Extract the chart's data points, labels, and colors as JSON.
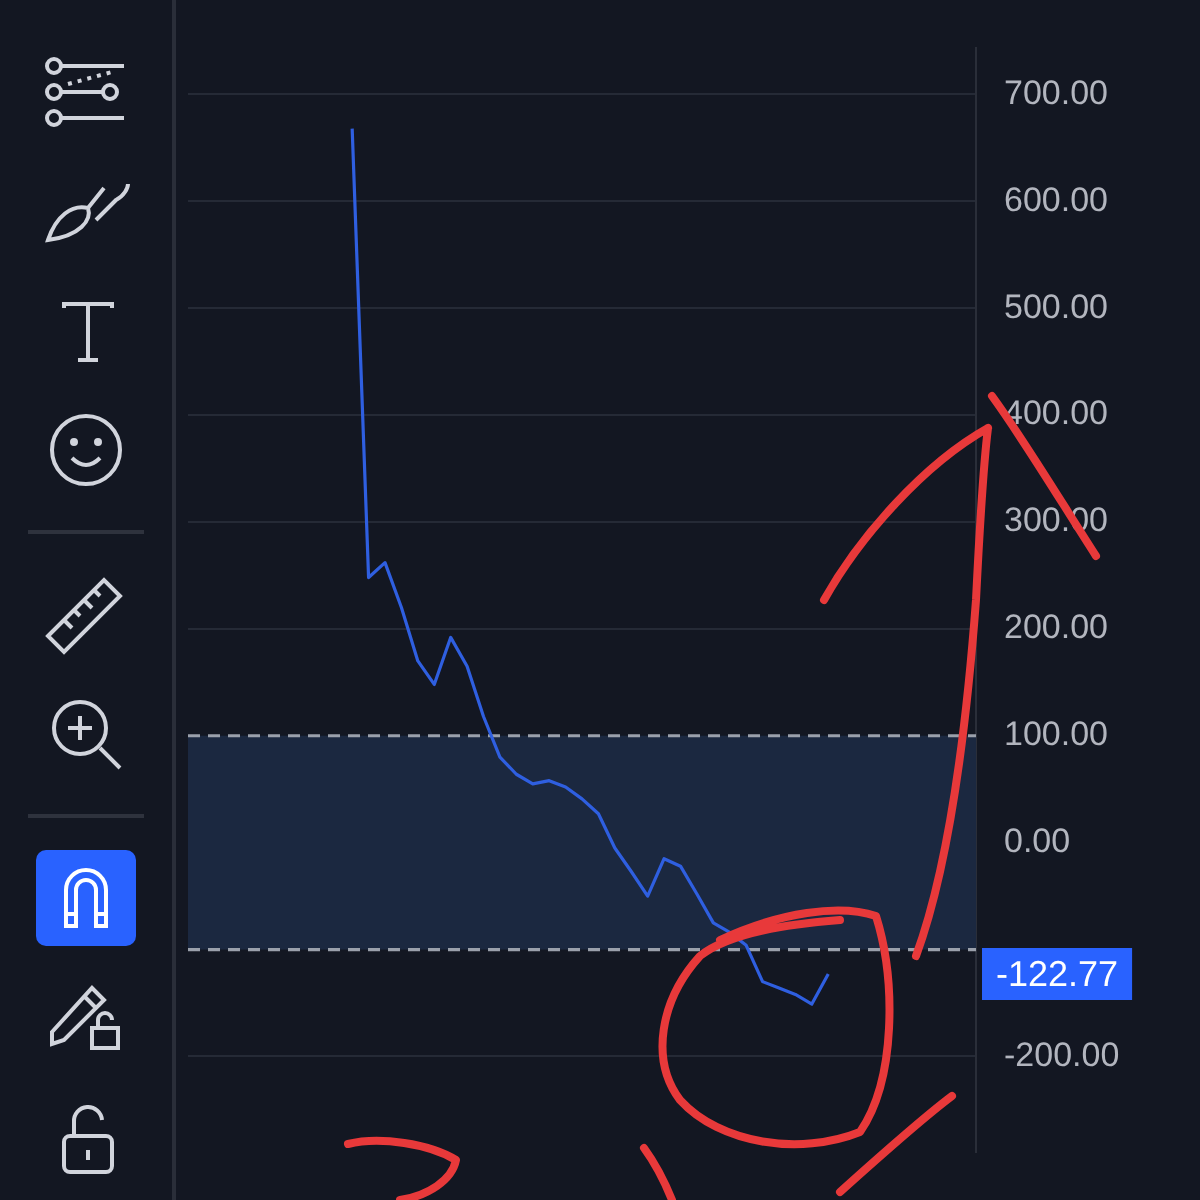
{
  "chart_data": {
    "type": "line",
    "categories": [
      null,
      null,
      null,
      null,
      null,
      null,
      null,
      null,
      null,
      null,
      null,
      null,
      null,
      null,
      null,
      null,
      null,
      null,
      null,
      null,
      null,
      null,
      null,
      null,
      null,
      null,
      null,
      null,
      null,
      null,
      null,
      null,
      null,
      null,
      null,
      null,
      null,
      null,
      null,
      null,
      null,
      null,
      null,
      null,
      null,
      null,
      null,
      null,
      null
    ],
    "series": [
      {
        "color": "#2f5fe0",
        "values": [
          null,
          null,
          null,
          null,
          null,
          null,
          null,
          null,
          null,
          null,
          668,
          248,
          262,
          220,
          170,
          148,
          192,
          165,
          118,
          80,
          64,
          55,
          58,
          52,
          41,
          27,
          -5,
          -27,
          -50,
          -15,
          -22,
          -48,
          -75,
          -84,
          -96,
          -130,
          -136,
          -142,
          -151,
          -122.77,
          null,
          null,
          null,
          null,
          null,
          null,
          null,
          null,
          null
        ]
      }
    ],
    "ylim": [
      -289,
      743
    ],
    "yticks": [
      {
        "value": -200,
        "label": "-200.00"
      },
      {
        "value": -100,
        "label": null
      },
      {
        "value": 0,
        "label": "0.00"
      },
      {
        "value": 100,
        "label": "100.00"
      },
      {
        "value": 200,
        "label": "200.00"
      },
      {
        "value": 300,
        "label": "300.00"
      },
      {
        "value": 400,
        "label": "400.00"
      },
      {
        "value": 500,
        "label": "500.00"
      },
      {
        "value": 600,
        "label": "600.00"
      },
      {
        "value": 700,
        "label": "700.00"
      }
    ],
    "bands": [
      {
        "axis": "y",
        "from": -100,
        "to": 100,
        "color": "#1b2840"
      }
    ],
    "annotations": [
      "-122.77"
    ],
    "grid": "y",
    "legend": false,
    "marker": "none",
    "line_style": "solid",
    "tick_labels": "y"
  }
}
